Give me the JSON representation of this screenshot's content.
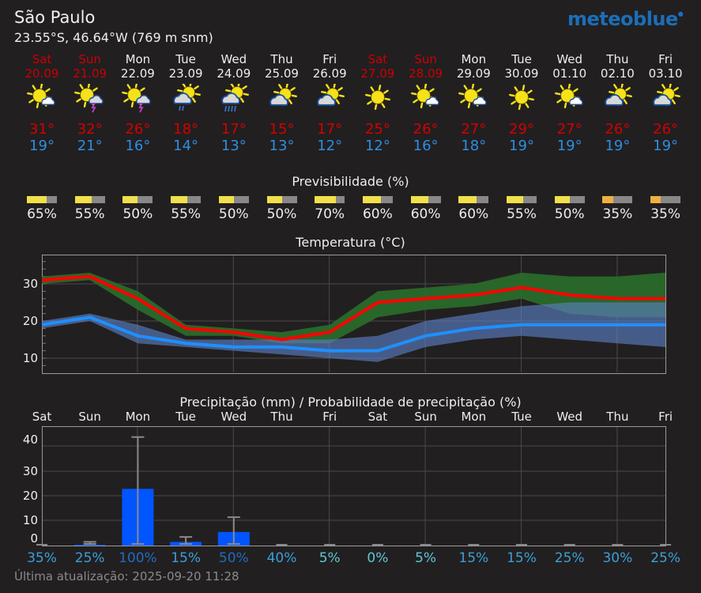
{
  "header": {
    "location": "São Paulo",
    "coordinates": "23.55°S, 46.64°W (769 m snm)",
    "logo": "meteoblue",
    "brand_color": "#1b6fb8"
  },
  "days": [
    {
      "name": "Sat",
      "date": "20.09",
      "weekend": true,
      "icon": "sun-with-small-cloud-icon",
      "tmax": "31°",
      "tmin": "19°",
      "predictability": 65,
      "predictability_label": "65%",
      "precip_day": "Sat",
      "precip_prob": "35%"
    },
    {
      "name": "Sun",
      "date": "21.09",
      "weekend": true,
      "icon": "sun-cloud-thunderstorm-icon",
      "tmax": "32°",
      "tmin": "21°",
      "predictability": 55,
      "predictability_label": "55%",
      "precip_day": "Sun",
      "precip_prob": "25%"
    },
    {
      "name": "Mon",
      "date": "22.09",
      "weekend": false,
      "icon": "sun-cloud-thunderstorm-icon",
      "tmax": "26°",
      "tmin": "16°",
      "predictability": 50,
      "predictability_label": "50%",
      "precip_day": "Mon",
      "precip_prob": "100%"
    },
    {
      "name": "Tue",
      "date": "23.09",
      "weekend": false,
      "icon": "cloud-sun-light-rain-icon",
      "tmax": "18°",
      "tmin": "14°",
      "predictability": 55,
      "predictability_label": "55%",
      "precip_day": "Tue",
      "precip_prob": "15%"
    },
    {
      "name": "Wed",
      "date": "24.09",
      "weekend": false,
      "icon": "cloud-sun-rain-icon",
      "tmax": "17°",
      "tmin": "13°",
      "predictability": 50,
      "predictability_label": "50%",
      "precip_day": "Wed",
      "precip_prob": "50%"
    },
    {
      "name": "Thu",
      "date": "25.09",
      "weekend": false,
      "icon": "cloud-sun-icon",
      "tmax": "15°",
      "tmin": "13°",
      "predictability": 50,
      "predictability_label": "50%",
      "precip_day": "Thu",
      "precip_prob": "40%"
    },
    {
      "name": "Fri",
      "date": "26.09",
      "weekend": false,
      "icon": "cloud-sun-icon",
      "tmax": "17°",
      "tmin": "12°",
      "predictability": 70,
      "predictability_label": "70%",
      "precip_day": "Fri",
      "precip_prob": "5%"
    },
    {
      "name": "Sat",
      "date": "27.09",
      "weekend": true,
      "icon": "sun-icon",
      "tmax": "25°",
      "tmin": "12°",
      "predictability": 60,
      "predictability_label": "60%",
      "precip_day": "Sat",
      "precip_prob": "0%"
    },
    {
      "name": "Sun",
      "date": "28.09",
      "weekend": true,
      "icon": "sun-with-small-cloud-icon",
      "tmax": "26°",
      "tmin": "16°",
      "predictability": 60,
      "predictability_label": "60%",
      "precip_day": "Sun",
      "precip_prob": "5%"
    },
    {
      "name": "Mon",
      "date": "29.09",
      "weekend": false,
      "icon": "sun-with-small-cloud-icon",
      "tmax": "27°",
      "tmin": "18°",
      "predictability": 60,
      "predictability_label": "60%",
      "precip_day": "Mon",
      "precip_prob": "15%"
    },
    {
      "name": "Tue",
      "date": "30.09",
      "weekend": false,
      "icon": "sun-icon",
      "tmax": "29°",
      "tmin": "19°",
      "predictability": 55,
      "predictability_label": "55%",
      "precip_day": "Tue",
      "precip_prob": "15%"
    },
    {
      "name": "Wed",
      "date": "01.10",
      "weekend": false,
      "icon": "sun-with-small-cloud-icon",
      "tmax": "27°",
      "tmin": "19°",
      "predictability": 50,
      "predictability_label": "50%",
      "precip_day": "Wed",
      "precip_prob": "25%"
    },
    {
      "name": "Thu",
      "date": "02.10",
      "weekend": false,
      "icon": "cloud-sun-icon",
      "tmax": "26°",
      "tmin": "19°",
      "predictability": 35,
      "predictability_label": "35%",
      "precip_day": "Thu",
      "precip_prob": "30%"
    },
    {
      "name": "Fri",
      "date": "03.10",
      "weekend": false,
      "icon": "cloud-sun-icon",
      "tmax": "26°",
      "tmin": "19°",
      "predictability": 35,
      "predictability_label": "35%",
      "precip_day": "Fri",
      "precip_prob": "25%"
    }
  ],
  "predictability": {
    "title": "Previsibilidade (%)",
    "color_high": "#f2e04a",
    "color_low": "#f0b040",
    "color_rest": "#888888"
  },
  "temperature_chart": {
    "title": "Temperatura (°C)",
    "yticks": [
      "30",
      "20",
      "10"
    ]
  },
  "precip_chart": {
    "title": "Precipitação (mm) / Probabilidade de precipitação (%)",
    "yticks": [
      "40",
      "30",
      "20",
      "10",
      "0"
    ]
  },
  "footer": {
    "last_update": "Última atualização: 2025-09-20 11:28"
  },
  "chart_data": [
    {
      "type": "line",
      "title": "Temperatura (°C)",
      "xlabel": "",
      "ylabel": "°C",
      "ylim": [
        6,
        38
      ],
      "grid": true,
      "categories": [
        "Sat 20.09",
        "Sun 21.09",
        "Mon 22.09",
        "Tue 23.09",
        "Wed 24.09",
        "Thu 25.09",
        "Fri 26.09",
        "Sat 27.09",
        "Sun 28.09",
        "Mon 29.09",
        "Tue 30.09",
        "Wed 01.10",
        "Thu 02.10",
        "Fri 03.10"
      ],
      "series": [
        {
          "name": "Max temperature",
          "color": "#ff0000",
          "values": [
            31,
            32,
            26,
            18,
            17,
            15,
            17,
            25,
            26,
            27,
            29,
            27,
            26,
            26
          ]
        },
        {
          "name": "Max temperature spread upper",
          "color": "#2a6a2a",
          "values": [
            32,
            33,
            28,
            19,
            18,
            17,
            19,
            28,
            29,
            30,
            33,
            32,
            32,
            33
          ]
        },
        {
          "name": "Max temperature spread lower",
          "color": "#2a6a2a",
          "values": [
            30,
            31,
            23,
            16,
            16,
            14,
            14,
            21,
            23,
            24,
            26,
            22,
            21,
            21
          ]
        },
        {
          "name": "Min temperature",
          "color": "#1e90ff",
          "values": [
            19,
            21,
            16,
            14,
            13,
            13,
            12,
            12,
            16,
            18,
            19,
            19,
            19,
            19
          ]
        },
        {
          "name": "Min temperature spread upper",
          "color": "#4a6aa0",
          "values": [
            20,
            22,
            19,
            15,
            15,
            15,
            15,
            16,
            20,
            22,
            24,
            25,
            25,
            25
          ]
        },
        {
          "name": "Min temperature spread lower",
          "color": "#4a6aa0",
          "values": [
            18,
            20,
            14,
            13,
            12,
            11,
            10,
            9,
            13,
            15,
            16,
            15,
            14,
            13
          ]
        }
      ]
    },
    {
      "type": "bar",
      "title": "Precipitação (mm) / Probabilidade de precipitação (%)",
      "xlabel": "",
      "ylabel": "mm",
      "ylim": [
        -2,
        46
      ],
      "grid": true,
      "categories": [
        "Sat",
        "Sun",
        "Mon",
        "Tue",
        "Wed",
        "Thu",
        "Fri",
        "Sat",
        "Sun",
        "Mon",
        "Tue",
        "Wed",
        "Thu",
        "Fri"
      ],
      "series": [
        {
          "name": "Precipitation (mm)",
          "color": "#0055ff",
          "values": [
            0,
            0.3,
            23,
            1.5,
            5.5,
            0,
            0,
            0,
            0,
            0,
            0,
            0,
            0,
            0
          ]
        },
        {
          "name": "Precipitation range max (mm)",
          "color": "#888888",
          "values": [
            0,
            1.5,
            44,
            3.5,
            11.5,
            0,
            0,
            0,
            0,
            0,
            0,
            0,
            0,
            0
          ]
        },
        {
          "name": "Precipitation probability (%)",
          "values": [
            35,
            25,
            100,
            15,
            50,
            40,
            5,
            0,
            5,
            15,
            15,
            25,
            30,
            25
          ]
        }
      ]
    }
  ]
}
